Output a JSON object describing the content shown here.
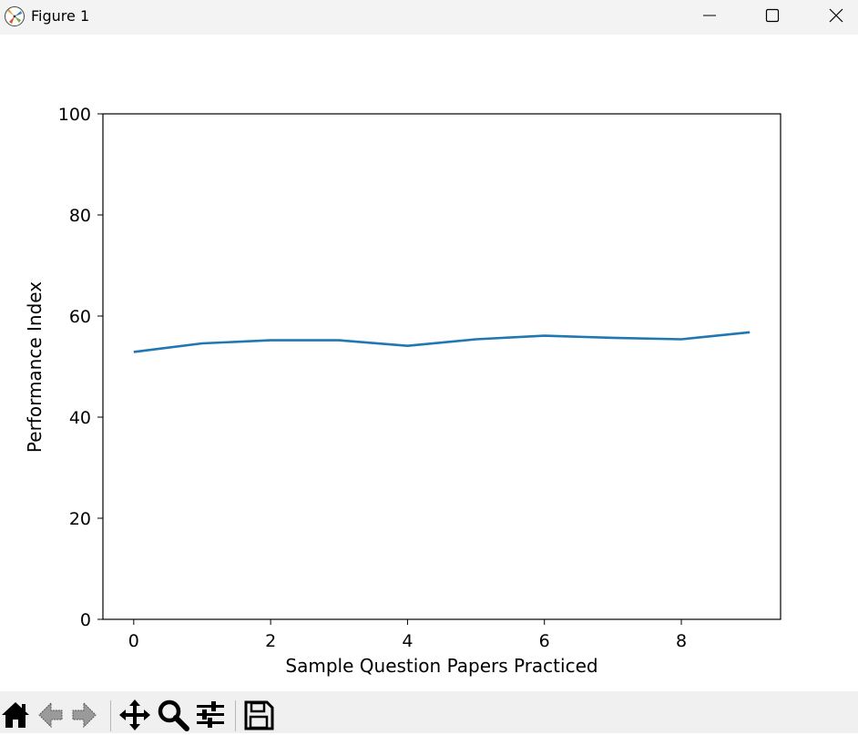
{
  "window": {
    "title": "Figure 1",
    "icons": [
      "matplotlib-icon",
      "minimize-icon",
      "maximize-icon",
      "close-icon"
    ]
  },
  "toolbar": {
    "buttons": [
      "home-icon",
      "back-icon",
      "forward-icon",
      "pan-icon",
      "zoom-icon",
      "configure-subplots-icon",
      "save-icon"
    ]
  },
  "chart_data": {
    "type": "line",
    "title": "",
    "xlabel": "Sample Question Papers Practiced",
    "ylabel": "Performance Index",
    "xlim": [
      -0.45,
      9.45
    ],
    "ylim": [
      0,
      100
    ],
    "x_ticks": [
      0,
      2,
      4,
      6,
      8
    ],
    "y_ticks": [
      0,
      20,
      40,
      60,
      80,
      100
    ],
    "grid": false,
    "series": [
      {
        "color": "#1f77b4",
        "x": [
          0,
          1,
          2,
          3,
          4,
          5,
          6,
          7,
          8,
          9
        ],
        "y": [
          52.9,
          54.6,
          55.2,
          55.2,
          54.1,
          55.4,
          56.1,
          55.7,
          55.4,
          56.8
        ]
      }
    ]
  }
}
